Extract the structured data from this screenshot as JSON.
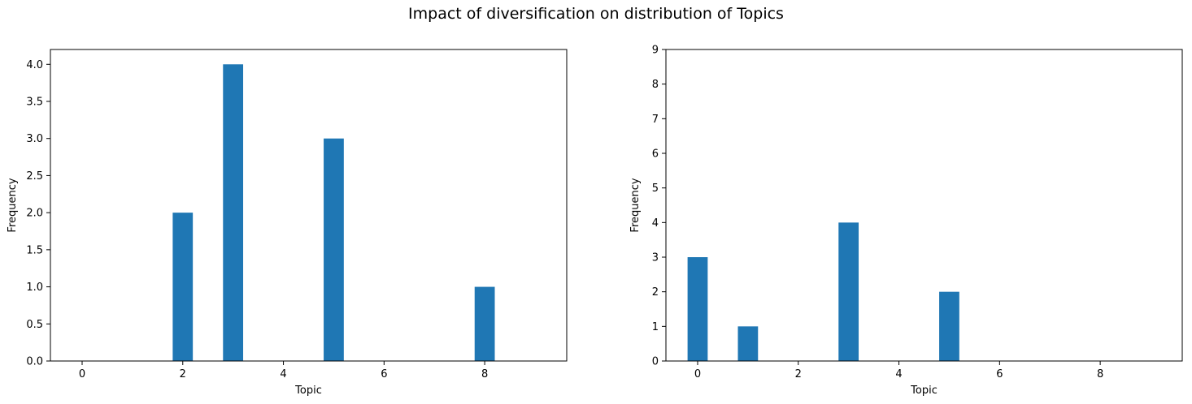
{
  "figure": {
    "suptitle": "Impact of diversification on distribution of Topics"
  },
  "chart_data": [
    {
      "type": "bar",
      "title": "",
      "xlabel": "Topic",
      "ylabel": "Frequency",
      "xlim": [
        -0.63,
        9.63
      ],
      "ylim": [
        0,
        4.2
      ],
      "xticks": [
        0,
        2,
        4,
        6,
        8
      ],
      "yticks": [
        0,
        0.5,
        1,
        1.5,
        2,
        2.5,
        3,
        3.5,
        4
      ],
      "ytick_labels": [
        "0.0",
        "0.5",
        "1.0",
        "1.5",
        "2.0",
        "2.5",
        "3.0",
        "3.5",
        "4.0"
      ],
      "bar_width": 0.4,
      "color": "#1f77b4",
      "grid": false,
      "bars": [
        {
          "x": 2,
          "value": 2
        },
        {
          "x": 3,
          "value": 4
        },
        {
          "x": 5,
          "value": 3
        },
        {
          "x": 8,
          "value": 1
        }
      ]
    },
    {
      "type": "bar",
      "title": "",
      "xlabel": "Topic",
      "ylabel": "Frequency",
      "xlim": [
        -0.63,
        9.63
      ],
      "ylim": [
        0,
        9
      ],
      "xticks": [
        0,
        2,
        4,
        6,
        8
      ],
      "yticks": [
        0,
        1,
        2,
        3,
        4,
        5,
        6,
        7,
        8,
        9
      ],
      "ytick_labels": [
        "0",
        "1",
        "2",
        "3",
        "4",
        "5",
        "6",
        "7",
        "8",
        "9"
      ],
      "bar_width": 0.4,
      "color": "#1f77b4",
      "grid": false,
      "bars": [
        {
          "x": 0,
          "value": 3
        },
        {
          "x": 1,
          "value": 1
        },
        {
          "x": 3,
          "value": 4
        },
        {
          "x": 5,
          "value": 2
        }
      ]
    }
  ]
}
